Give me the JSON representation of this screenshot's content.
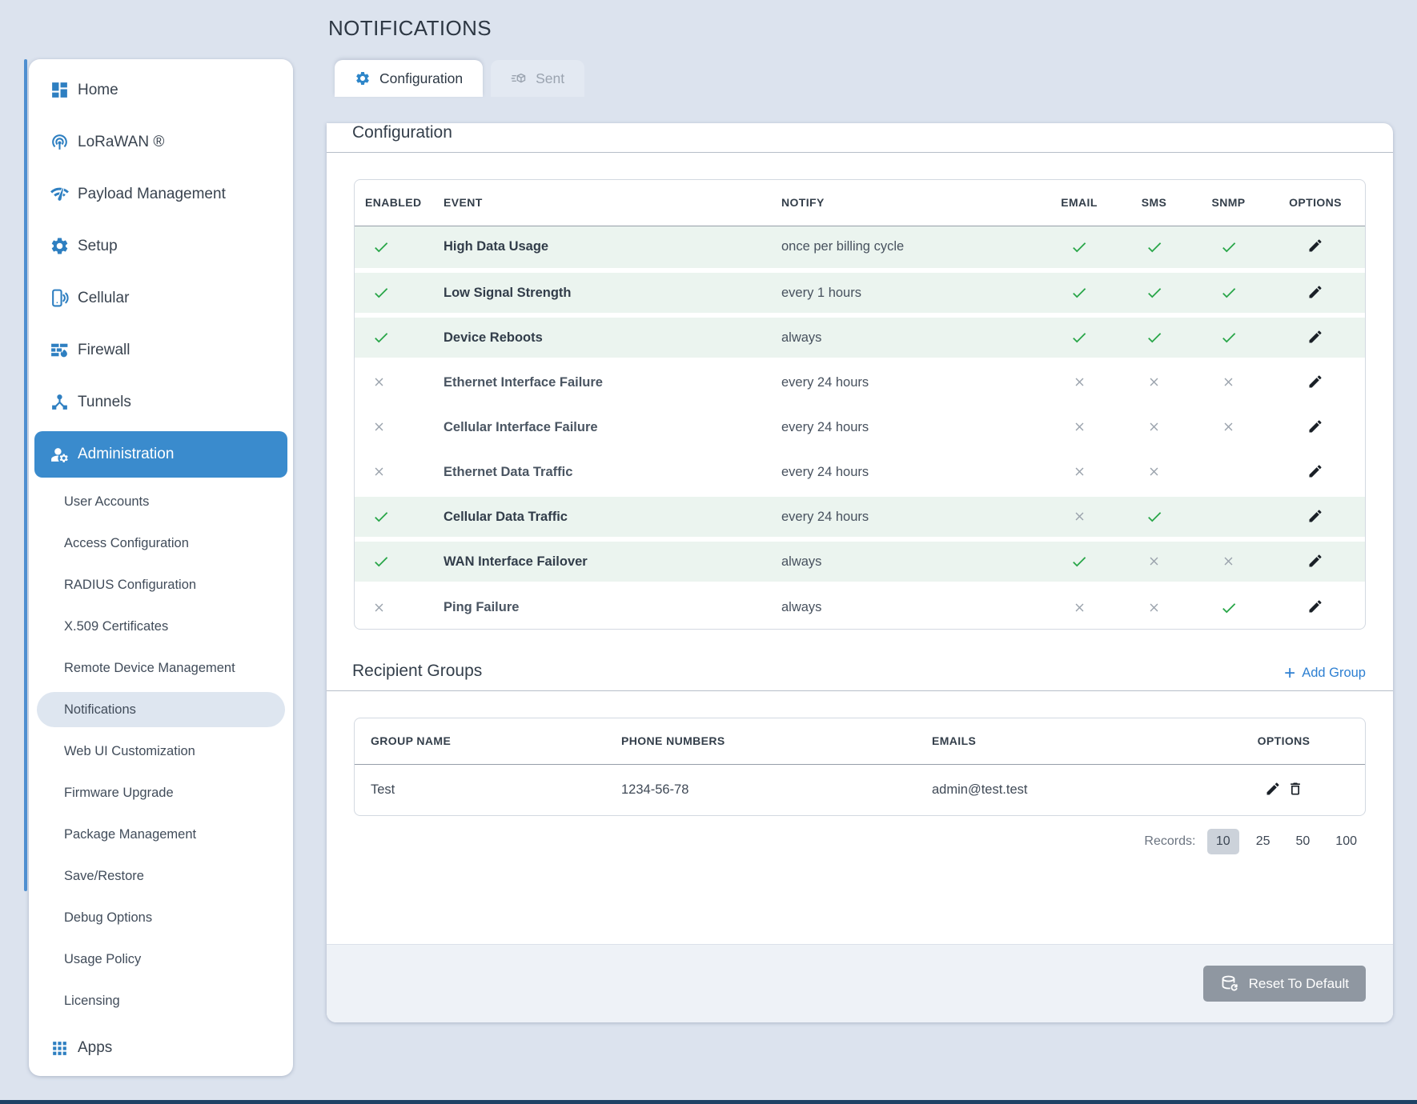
{
  "page": {
    "title": "NOTIFICATIONS"
  },
  "sidebar": {
    "items": [
      {
        "label": "Home"
      },
      {
        "label": "LoRaWAN ®"
      },
      {
        "label": "Payload Management"
      },
      {
        "label": "Setup"
      },
      {
        "label": "Cellular"
      },
      {
        "label": "Firewall"
      },
      {
        "label": "Tunnels"
      },
      {
        "label": "Administration",
        "active": true
      },
      {
        "label": "Apps"
      }
    ],
    "admin_subitems": [
      {
        "label": "User Accounts"
      },
      {
        "label": "Access Configuration"
      },
      {
        "label": "RADIUS Configuration"
      },
      {
        "label": "X.509 Certificates"
      },
      {
        "label": "Remote Device Management"
      },
      {
        "label": "Notifications",
        "selected": true
      },
      {
        "label": "Web UI Customization"
      },
      {
        "label": "Firmware Upgrade"
      },
      {
        "label": "Package Management"
      },
      {
        "label": "Save/Restore"
      },
      {
        "label": "Debug Options"
      },
      {
        "label": "Usage Policy"
      },
      {
        "label": "Licensing"
      }
    ]
  },
  "tabs": [
    {
      "label": "Configuration",
      "active": true
    },
    {
      "label": "Sent",
      "active": false
    }
  ],
  "config_section": {
    "heading": "Configuration",
    "table": {
      "headers": [
        "ENABLED",
        "EVENT",
        "NOTIFY",
        "EMAIL",
        "SMS",
        "SNMP",
        "OPTIONS"
      ],
      "rows": [
        {
          "enabled": true,
          "event": "High Data Usage",
          "notify": "once per billing cycle",
          "email": "check",
          "sms": "check",
          "snmp": "check"
        },
        {
          "enabled": true,
          "event": "Low Signal Strength",
          "notify": "every 1 hours",
          "email": "check",
          "sms": "check",
          "snmp": "check"
        },
        {
          "enabled": true,
          "event": "Device Reboots",
          "notify": "always",
          "email": "check",
          "sms": "check",
          "snmp": "check"
        },
        {
          "enabled": false,
          "event": "Ethernet Interface Failure",
          "notify": "every 24 hours",
          "email": "cross",
          "sms": "cross",
          "snmp": "cross"
        },
        {
          "enabled": false,
          "event": "Cellular Interface Failure",
          "notify": "every 24 hours",
          "email": "cross",
          "sms": "cross",
          "snmp": "cross"
        },
        {
          "enabled": false,
          "event": "Ethernet Data Traffic",
          "notify": "every 24 hours",
          "email": "cross",
          "sms": "cross",
          "snmp": "none"
        },
        {
          "enabled": true,
          "event": "Cellular Data Traffic",
          "notify": "every 24 hours",
          "email": "cross",
          "sms": "check",
          "snmp": "none"
        },
        {
          "enabled": true,
          "event": "WAN Interface Failover",
          "notify": "always",
          "email": "check",
          "sms": "cross",
          "snmp": "cross"
        },
        {
          "enabled": false,
          "event": "Ping Failure",
          "notify": "always",
          "email": "cross",
          "sms": "cross",
          "snmp": "check"
        }
      ]
    }
  },
  "recipient_groups": {
    "heading": "Recipient Groups",
    "add_label": "Add Group",
    "table": {
      "headers": [
        "GROUP NAME",
        "PHONE NUMBERS",
        "EMAILS",
        "OPTIONS"
      ],
      "rows": [
        {
          "group_name": "Test",
          "phone_numbers": "1234-56-78",
          "emails": "admin@test.test"
        }
      ]
    },
    "records": {
      "label": "Records:",
      "options": [
        "10",
        "25",
        "50",
        "100"
      ],
      "selected": "10"
    }
  },
  "footer": {
    "reset_label": "Reset To Default"
  },
  "colors": {
    "accent_blue": "#3a8bcd",
    "icon_blue": "#2e7fc1",
    "link_blue": "#2e80d2",
    "check_green": "#28a648",
    "cross_gray": "#9aa2ac",
    "enabled_row_bg": "#ebf4ef",
    "page_bg": "#dce3ee"
  }
}
